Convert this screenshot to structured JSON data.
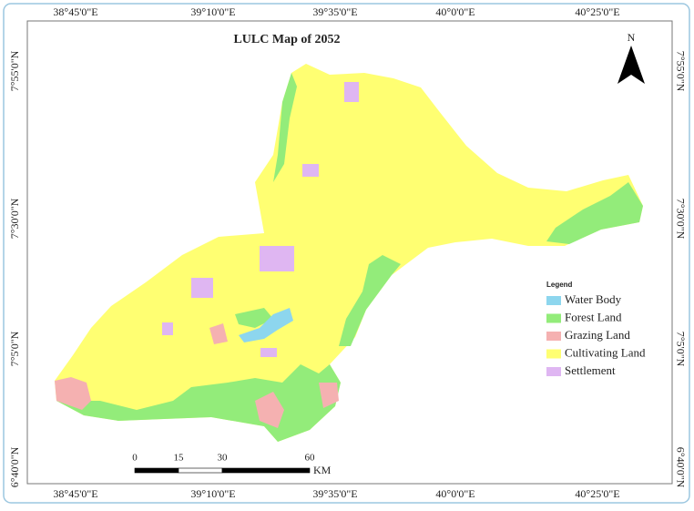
{
  "title": "LULC Map of 2052",
  "north_arrow": "N",
  "graticule": {
    "top": [
      "38°45'0\"E",
      "39°10'0\"E",
      "39°35'0\"E",
      "40°0'0\"E",
      "40°25'0\"E"
    ],
    "bottom": [
      "38°45'0\"E",
      "39°10'0\"E",
      "39°35'0\"E",
      "40°0'0\"E",
      "40°25'0\"E"
    ],
    "left": [
      "7°55'0\"N",
      "7°30'0\"N",
      "7°5'0\"N",
      "6°40'0\"N"
    ],
    "right": [
      "7°55'0\"N",
      "7°30'0\"N",
      "7°5'0\"N",
      "6°40'0\"N"
    ]
  },
  "legend": {
    "title": "Legend",
    "items": [
      {
        "label": "Water Body",
        "color": "#8dd6ee"
      },
      {
        "label": "Forest Land",
        "color": "#93ec7a"
      },
      {
        "label": "Grazing Land",
        "color": "#f5b1b1"
      },
      {
        "label": "Cultivating Land",
        "color": "#ffff72"
      },
      {
        "label": "Settlement",
        "color": "#dfb6f2"
      }
    ]
  },
  "scale_bar": {
    "labels": [
      0,
      15,
      30,
      60
    ],
    "unit": "KM"
  }
}
